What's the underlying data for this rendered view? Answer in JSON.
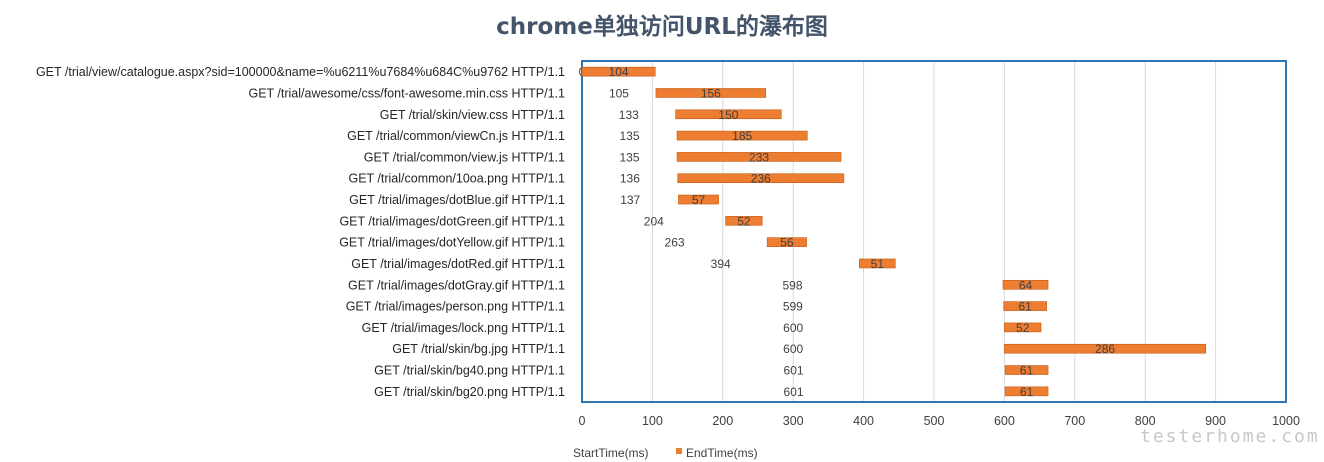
{
  "chart_data": {
    "type": "bar",
    "orientation": "horizontal-stacked",
    "title": "chrome单独访问URL的瀑布图",
    "xlim": [
      0,
      1000
    ],
    "x_ticks": [
      "0",
      "100",
      "200",
      "300",
      "400",
      "500",
      "600",
      "700",
      "800",
      "900",
      "1000"
    ],
    "grid": true,
    "legend_position": "bottom",
    "categories": [
      "GET /trial/view/catalogue.aspx?sid=100000&name=%u6211%u7684%u684C%u9762 HTTP/1.1",
      "GET /trial/awesome/css/font-awesome.min.css HTTP/1.1",
      "GET /trial/skin/view.css HTTP/1.1",
      "GET /trial/common/viewCn.js HTTP/1.1",
      "GET /trial/common/view.js HTTP/1.1",
      "GET /trial/common/10oa.png HTTP/1.1",
      "GET /trial/images/dotBlue.gif HTTP/1.1",
      "GET /trial/images/dotGreen.gif HTTP/1.1",
      "GET /trial/images/dotYellow.gif HTTP/1.1",
      "GET /trial/images/dotRed.gif HTTP/1.1",
      "GET /trial/images/dotGray.gif HTTP/1.1",
      "GET /trial/images/person.png HTTP/1.1",
      "GET /trial/images/lock.png HTTP/1.1",
      "GET /trial/skin/bg.jpg HTTP/1.1",
      "GET /trial/skin/bg40.png HTTP/1.1",
      "GET /trial/skin/bg20.png HTTP/1.1"
    ],
    "series": [
      {
        "name": "StartTime(ms)",
        "color": "none",
        "values": [
          0,
          105,
          133,
          135,
          135,
          136,
          137,
          204,
          263,
          394,
          598,
          599,
          600,
          600,
          601,
          601
        ]
      },
      {
        "name": "EndTime(ms)",
        "color": "#ed7d31",
        "values": [
          104,
          156,
          150,
          185,
          233,
          236,
          57,
          52,
          56,
          51,
          64,
          61,
          52,
          286,
          61,
          61
        ]
      }
    ]
  },
  "colors": {
    "bar": "#ed7d31",
    "bar_border": "#c55a11",
    "plot_border": "#2e75b6",
    "grid": "#d9d9d9"
  },
  "watermark": "testerhome.com"
}
